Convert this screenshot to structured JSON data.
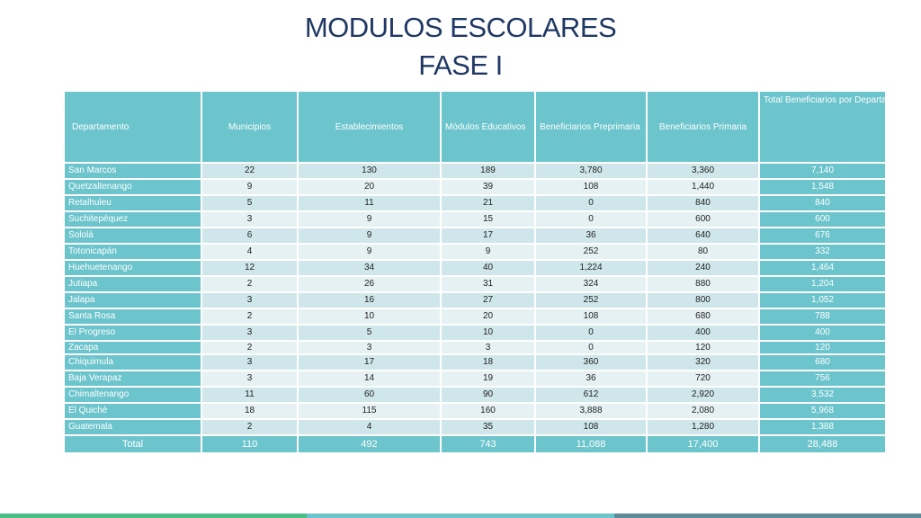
{
  "title": {
    "line1": "MODULOS ESCOLARES",
    "line2": "FASE I"
  },
  "table": {
    "headers": {
      "departamento": "Departamento",
      "municipios": "Municipios",
      "establecimientos": "Establecimientos",
      "modulos": "Módulos Educativos",
      "preprimaria": "Beneficiarios Preprimaria",
      "primaria": "Beneficiarios Primaria",
      "total": "Total Beneficiarios por Departamento"
    },
    "rows": [
      [
        "San Marcos",
        "22",
        "130",
        "189",
        "3,780",
        "3,360",
        "7,140"
      ],
      [
        "Quetzaltenango",
        "9",
        "20",
        "39",
        "108",
        "1,440",
        "1,548"
      ],
      [
        "Retalhuleu",
        "5",
        "11",
        "21",
        "0",
        "840",
        "840"
      ],
      [
        "Suchitepéquez",
        "3",
        "9",
        "15",
        "0",
        "600",
        "600"
      ],
      [
        "Sololá",
        "6",
        "9",
        "17",
        "36",
        "640",
        "676"
      ],
      [
        "Totonicapán",
        "4",
        "9",
        "9",
        "252",
        "80",
        "332"
      ],
      [
        "Huehuetenango",
        "12",
        "34",
        "40",
        "1,224",
        "240",
        "1,464"
      ],
      [
        "Jutiapa",
        "2",
        "26",
        "31",
        "324",
        "880",
        "1,204"
      ],
      [
        "Jalapa",
        "3",
        "16",
        "27",
        "252",
        "800",
        "1,052"
      ],
      [
        "Santa Rosa",
        "2",
        "10",
        "20",
        "108",
        "680",
        "788"
      ],
      [
        "El Progreso",
        "3",
        "5",
        "10",
        "0",
        "400",
        "400"
      ],
      [
        "Zacapa",
        "2",
        "3",
        "3",
        "0",
        "120",
        "120"
      ],
      [
        "Chiquimula",
        "3",
        "17",
        "18",
        "360",
        "320",
        "680"
      ],
      [
        "Baja Verapaz",
        "3",
        "14",
        "19",
        "36",
        "720",
        "756"
      ],
      [
        "Chimaltenango",
        "11",
        "60",
        "90",
        "612",
        "2,920",
        "3,532"
      ],
      [
        "El Quiché",
        "18",
        "115",
        "160",
        "3,888",
        "2,080",
        "5,968"
      ],
      [
        "Guatemala",
        "2",
        "4",
        "35",
        "108",
        "1,280",
        "1,388"
      ]
    ],
    "total": [
      "Total",
      "110",
      "492",
      "743",
      "11,088",
      "17,400",
      "28,488"
    ]
  },
  "colors": {
    "title": "#1f3864",
    "header": "#6cc4cc",
    "row_odd": "#cfe7ea",
    "row_even": "#e6f1f3",
    "footer_bar": [
      "#4cbf86",
      "#6cc4cc",
      "#5f8a99"
    ]
  }
}
